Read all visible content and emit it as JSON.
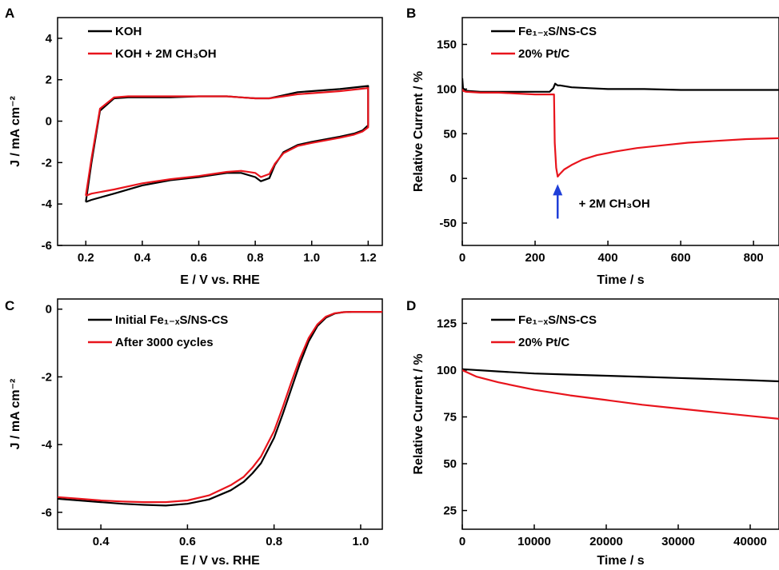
{
  "chart_data": [
    {
      "panel": "A",
      "type": "line",
      "xlabel": "E / V vs. RHE",
      "ylabel": "J / mA cm⁻²",
      "xlim": [
        0.1,
        1.25
      ],
      "ylim": [
        -6,
        5
      ],
      "xticks": [
        0.2,
        0.4,
        0.6,
        0.8,
        1.0,
        1.2
      ],
      "xtick_labels": [
        "0.2",
        "0.4",
        "0.6",
        "0.8",
        "1.0",
        "1.2"
      ],
      "yticks": [
        -6,
        -4,
        -2,
        0,
        2,
        4
      ],
      "ytick_labels": [
        "-6",
        "-4",
        "-2",
        "0",
        "2",
        "4"
      ],
      "legend_position": "top-left",
      "series": [
        {
          "name": "KOH",
          "color": "#000000",
          "x": [
            0.2,
            0.22,
            0.25,
            0.3,
            0.35,
            0.4,
            0.5,
            0.6,
            0.7,
            0.75,
            0.8,
            0.85,
            0.9,
            0.95,
            1.0,
            1.1,
            1.2,
            1.2,
            1.18,
            1.15,
            1.1,
            1.0,
            0.95,
            0.9,
            0.87,
            0.85,
            0.82,
            0.8,
            0.75,
            0.7,
            0.6,
            0.5,
            0.4,
            0.3,
            0.22,
            0.2
          ],
          "y": [
            -3.9,
            -2.0,
            0.5,
            1.1,
            1.15,
            1.15,
            1.15,
            1.2,
            1.2,
            1.15,
            1.1,
            1.1,
            1.25,
            1.4,
            1.45,
            1.55,
            1.7,
            -0.2,
            -0.45,
            -0.6,
            -0.75,
            -1.0,
            -1.15,
            -1.5,
            -2.1,
            -2.75,
            -2.9,
            -2.7,
            -2.5,
            -2.5,
            -2.7,
            -2.85,
            -3.1,
            -3.5,
            -3.8,
            -3.9
          ]
        },
        {
          "name": "KOH + 2M CH₃OH",
          "color": "#e8141c",
          "x": [
            0.2,
            0.22,
            0.25,
            0.3,
            0.35,
            0.4,
            0.5,
            0.6,
            0.7,
            0.75,
            0.8,
            0.85,
            0.9,
            0.95,
            1.0,
            1.1,
            1.2,
            1.2,
            1.18,
            1.15,
            1.1,
            1.0,
            0.95,
            0.9,
            0.87,
            0.85,
            0.82,
            0.8,
            0.75,
            0.7,
            0.6,
            0.5,
            0.4,
            0.3,
            0.22,
            0.2
          ],
          "y": [
            -3.6,
            -1.8,
            0.6,
            1.15,
            1.2,
            1.2,
            1.2,
            1.2,
            1.2,
            1.15,
            1.1,
            1.1,
            1.2,
            1.3,
            1.35,
            1.45,
            1.6,
            -0.3,
            -0.5,
            -0.65,
            -0.8,
            -1.05,
            -1.2,
            -1.55,
            -2.05,
            -2.55,
            -2.7,
            -2.5,
            -2.4,
            -2.45,
            -2.65,
            -2.8,
            -3.0,
            -3.3,
            -3.5,
            -3.6
          ]
        }
      ]
    },
    {
      "panel": "B",
      "type": "line",
      "xlabel": "Time / s",
      "ylabel": "Relative Current / %",
      "xlim": [
        0,
        870
      ],
      "ylim": [
        -75,
        180
      ],
      "xticks": [
        0,
        200,
        400,
        600,
        800
      ],
      "xtick_labels": [
        "0",
        "200",
        "400",
        "600",
        "800"
      ],
      "yticks": [
        -50,
        0,
        50,
        100,
        150
      ],
      "ytick_labels": [
        "-50",
        "0",
        "50",
        "100",
        "150"
      ],
      "legend_position": "top-left",
      "annotations": [
        {
          "text": "+ 2M CH₃OH",
          "x": 320,
          "y": -28
        }
      ],
      "arrow": {
        "x": 262,
        "y_from": -45,
        "y_to": -10,
        "color": "#1f3fd8"
      },
      "series": [
        {
          "name": "Fe₁₋ₓS/NS-CS",
          "color": "#000000",
          "x": [
            0,
            2,
            10,
            50,
            100,
            150,
            200,
            240,
            250,
            255,
            262,
            270,
            300,
            350,
            400,
            500,
            600,
            700,
            800,
            870
          ],
          "y": [
            112,
            101,
            98,
            97,
            97,
            97,
            97,
            97,
            101,
            106,
            104,
            104,
            102,
            101,
            100,
            100,
            99,
            99,
            99,
            99
          ]
        },
        {
          "name": "20% Pt/C",
          "color": "#e8141c",
          "x": [
            0,
            2,
            10,
            50,
            100,
            150,
            200,
            240,
            252,
            254,
            258,
            262,
            268,
            280,
            300,
            330,
            370,
            420,
            480,
            550,
            620,
            700,
            780,
            870
          ],
          "y": [
            100,
            98,
            97,
            96,
            96,
            95,
            94,
            94,
            94,
            40,
            12,
            2,
            5,
            10,
            15,
            21,
            26,
            30,
            34,
            37,
            40,
            42,
            44,
            45
          ]
        }
      ]
    },
    {
      "panel": "C",
      "type": "line",
      "xlabel": "E / V vs. RHE",
      "ylabel": "J / mA cm⁻²",
      "xlim": [
        0.3,
        1.05
      ],
      "ylim": [
        -6.5,
        0.3
      ],
      "xticks": [
        0.4,
        0.6,
        0.8,
        1.0
      ],
      "xtick_labels": [
        "0.4",
        "0.6",
        "0.8",
        "1.0"
      ],
      "yticks": [
        -6,
        -4,
        -2,
        0
      ],
      "ytick_labels": [
        "-6",
        "-4",
        "-2",
        "0"
      ],
      "legend_position": "top-left",
      "series": [
        {
          "name": "Initial Fe₁₋ₓS/NS-CS",
          "color": "#000000",
          "x": [
            0.3,
            0.35,
            0.4,
            0.45,
            0.5,
            0.55,
            0.6,
            0.65,
            0.7,
            0.73,
            0.75,
            0.77,
            0.8,
            0.82,
            0.84,
            0.86,
            0.88,
            0.9,
            0.92,
            0.94,
            0.96,
            0.98,
            1.0,
            1.05
          ],
          "y": [
            -5.6,
            -5.65,
            -5.7,
            -5.75,
            -5.78,
            -5.8,
            -5.75,
            -5.62,
            -5.35,
            -5.1,
            -4.85,
            -4.55,
            -3.8,
            -3.1,
            -2.35,
            -1.6,
            -0.95,
            -0.5,
            -0.25,
            -0.13,
            -0.09,
            -0.08,
            -0.08,
            -0.08
          ]
        },
        {
          "name": "After 3000 cycles",
          "color": "#e8141c",
          "x": [
            0.3,
            0.35,
            0.4,
            0.45,
            0.5,
            0.55,
            0.6,
            0.65,
            0.7,
            0.73,
            0.75,
            0.77,
            0.8,
            0.82,
            0.84,
            0.86,
            0.88,
            0.9,
            0.92,
            0.94,
            0.96,
            0.98,
            1.0,
            1.05
          ],
          "y": [
            -5.55,
            -5.6,
            -5.65,
            -5.68,
            -5.7,
            -5.7,
            -5.65,
            -5.5,
            -5.2,
            -4.95,
            -4.68,
            -4.35,
            -3.6,
            -2.9,
            -2.15,
            -1.45,
            -0.85,
            -0.45,
            -0.22,
            -0.12,
            -0.09,
            -0.08,
            -0.08,
            -0.08
          ]
        }
      ]
    },
    {
      "panel": "D",
      "type": "line",
      "xlabel": "Time / s",
      "ylabel": "Relative Current / %",
      "xlim": [
        0,
        44000
      ],
      "ylim": [
        15,
        138
      ],
      "xticks": [
        0,
        10000,
        20000,
        30000,
        40000
      ],
      "xtick_labels": [
        "0",
        "10000",
        "20000",
        "30000",
        "40000"
      ],
      "yticks": [
        25,
        50,
        75,
        100,
        125
      ],
      "ytick_labels": [
        "25",
        "50",
        "75",
        "100",
        "125"
      ],
      "legend_position": "top-left",
      "series": [
        {
          "name": "Fe₁₋ₓS/NS-CS",
          "color": "#000000",
          "x": [
            0,
            5000,
            10000,
            15000,
            20000,
            25000,
            30000,
            35000,
            40000,
            44000
          ],
          "y": [
            100.5,
            99.3,
            98.2,
            97.6,
            97.0,
            96.4,
            95.8,
            95.2,
            94.6,
            94.0
          ]
        },
        {
          "name": "20% Pt/C",
          "color": "#e8141c",
          "x": [
            0,
            2000,
            5000,
            10000,
            15000,
            20000,
            25000,
            30000,
            35000,
            40000,
            44000
          ],
          "y": [
            100,
            96.5,
            93.5,
            89.5,
            86.5,
            84.0,
            81.5,
            79.5,
            77.5,
            75.5,
            74.0
          ]
        }
      ]
    }
  ]
}
